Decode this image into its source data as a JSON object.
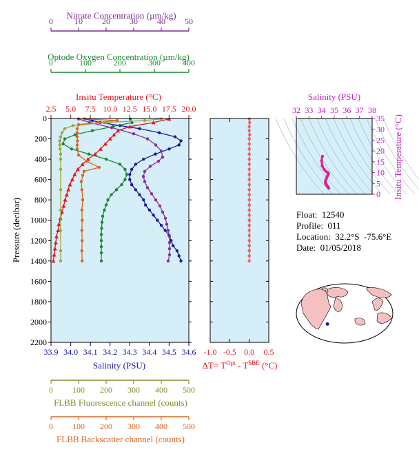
{
  "info": {
    "float": "Float:  12540",
    "profile": "Profile:  011",
    "location": "Location:  32.2°S  -75.6°E",
    "date": "Date:  01/05/2018"
  },
  "axes": {
    "pressure": {
      "title": "Pressure (decibar)",
      "range": [
        0,
        2200
      ],
      "ticks": [
        "0",
        "200",
        "400",
        "600",
        "800",
        "1000",
        "1200",
        "1400",
        "1600",
        "1800",
        "2000",
        "2200"
      ],
      "color": "#000000"
    },
    "nitrate": {
      "title": "Nitrate Concentration (µm/kg)",
      "range": [
        0,
        50
      ],
      "ticks": [
        "0",
        "10",
        "20",
        "30",
        "40",
        "50"
      ],
      "color": "#7b2e8e"
    },
    "oxygen": {
      "title": "Optode Oxygen Concentration (µm/kg)",
      "range": [
        0,
        400
      ],
      "ticks": [
        "0",
        "100",
        "200",
        "300",
        "400"
      ],
      "color": "#1a8a2e"
    },
    "temperature": {
      "title": "Insitu Temperature (°C)",
      "range": [
        2.5,
        20.0
      ],
      "ticks": [
        "2.5",
        "5.0",
        "7.5",
        "10.0",
        "12.5",
        "15.0",
        "17.5",
        "20.0"
      ],
      "color": "#e8151b"
    },
    "salinity": {
      "title": "Salinity (PSU)",
      "range": [
        33.9,
        34.6
      ],
      "ticks": [
        "33.9",
        "34.0",
        "34.1",
        "34.2",
        "34.3",
        "34.4",
        "34.5",
        "34.6"
      ],
      "color": "#1a1aa6"
    },
    "fluorescence": {
      "title": "FLBB Fluorescence channel (counts)",
      "range": [
        0,
        500
      ],
      "ticks": [
        "0",
        "100",
        "200",
        "300",
        "400",
        "500"
      ],
      "color": "#8a8a2e"
    },
    "backscatter": {
      "title": "FLBB Backscatter channel (counts)",
      "range": [
        0,
        500
      ],
      "ticks": [
        "0",
        "100",
        "200",
        "300",
        "400",
        "500"
      ],
      "color": "#d9661f"
    },
    "delta_t": {
      "title_prefix": "ΔT= T",
      "sup1": "Opt",
      "title_mid": " - T",
      "sup2": "SBE",
      "title_suffix": " (°C)",
      "range": [
        -1.0,
        0.5
      ],
      "ticks": [
        "-1.0",
        "-0.5",
        "0.0",
        "0.5"
      ],
      "color": "#e8151b"
    }
  },
  "chart_data": [
    {
      "type": "line",
      "y_label": "Pressure (decibar)",
      "y_range": [
        0,
        2200
      ],
      "y_inverted": true,
      "series": [
        {
          "name": "Salinity",
          "axis": "salinity",
          "color": "#1a1aa6",
          "marker": "circle",
          "points": [
            [
              34.07,
              5
            ],
            [
              34.11,
              20
            ],
            [
              34.15,
              40
            ],
            [
              34.25,
              70
            ],
            [
              34.35,
              100
            ],
            [
              34.45,
              140
            ],
            [
              34.53,
              180
            ],
            [
              34.56,
              220
            ],
            [
              34.55,
              260
            ],
            [
              34.5,
              300
            ],
            [
              34.43,
              350
            ],
            [
              34.37,
              400
            ],
            [
              34.33,
              450
            ],
            [
              34.31,
              500
            ],
            [
              34.3,
              550
            ],
            [
              34.3,
              600
            ],
            [
              34.31,
              650
            ],
            [
              34.33,
              700
            ],
            [
              34.35,
              750
            ],
            [
              34.37,
              800
            ],
            [
              34.38,
              850
            ],
            [
              34.4,
              900
            ],
            [
              34.42,
              950
            ],
            [
              34.44,
              1000
            ],
            [
              34.46,
              1050
            ],
            [
              34.48,
              1100
            ],
            [
              34.5,
              1150
            ],
            [
              34.51,
              1200
            ],
            [
              34.52,
              1250
            ],
            [
              34.54,
              1300
            ],
            [
              34.55,
              1350
            ],
            [
              34.56,
              1400
            ]
          ]
        },
        {
          "name": "Nitrate",
          "axis": "nitrate",
          "color": "#8b2f9e",
          "marker": "circle",
          "points": [
            [
              10,
              5
            ],
            [
              14,
              40
            ],
            [
              22,
              90
            ],
            [
              30,
              150
            ],
            [
              35,
              200
            ],
            [
              38,
              260
            ],
            [
              40,
              320
            ],
            [
              40.5,
              380
            ],
            [
              39,
              420
            ],
            [
              36,
              470
            ],
            [
              34,
              520
            ],
            [
              33.5,
              570
            ],
            [
              34,
              620
            ],
            [
              35,
              680
            ],
            [
              36.5,
              740
            ],
            [
              38,
              800
            ],
            [
              39.5,
              860
            ],
            [
              40.5,
              920
            ],
            [
              41.5,
              980
            ],
            [
              42,
              1040
            ],
            [
              42.5,
              1100
            ],
            [
              43,
              1160
            ],
            [
              43,
              1220
            ],
            [
              43,
              1280
            ],
            [
              43,
              1340
            ],
            [
              42.5,
              1400
            ]
          ]
        },
        {
          "name": "Oxygen",
          "axis": "oxygen",
          "color": "#1a8a2e",
          "marker": "circle",
          "points": [
            [
              230,
              5
            ],
            [
              235,
              40
            ],
            [
              180,
              80
            ],
            [
              120,
              120
            ],
            [
              70,
              160
            ],
            [
              40,
              200
            ],
            [
              35,
              250
            ],
            [
              60,
              300
            ],
            [
              110,
              350
            ],
            [
              160,
              400
            ],
            [
              200,
              450
            ],
            [
              215,
              500
            ],
            [
              220,
              550
            ],
            [
              215,
              600
            ],
            [
              205,
              650
            ],
            [
              190,
              700
            ],
            [
              175,
              750
            ],
            [
              165,
              800
            ],
            [
              160,
              850
            ],
            [
              155,
              900
            ],
            [
              150,
              960
            ],
            [
              148,
              1020
            ],
            [
              147,
              1080
            ],
            [
              146,
              1140
            ],
            [
              146,
              1200
            ],
            [
              146,
              1260
            ],
            [
              146,
              1320
            ],
            [
              146,
              1400
            ]
          ]
        },
        {
          "name": "Temperature",
          "axis": "temperature",
          "color": "#e8151b",
          "marker": "triangle",
          "points": [
            [
              17.5,
              5
            ],
            [
              15.5,
              40
            ],
            [
              12.5,
              80
            ],
            [
              11,
              120
            ],
            [
              10.5,
              160
            ],
            [
              10,
              200
            ],
            [
              9.4,
              250
            ],
            [
              8.8,
              300
            ],
            [
              8.1,
              350
            ],
            [
              7.2,
              400
            ],
            [
              6.5,
              450
            ],
            [
              5.9,
              500
            ],
            [
              5.5,
              550
            ],
            [
              5.2,
              600
            ],
            [
              4.9,
              650
            ],
            [
              4.7,
              700
            ],
            [
              4.5,
              750
            ],
            [
              4.3,
              800
            ],
            [
              4.1,
              860
            ],
            [
              3.9,
              920
            ],
            [
              3.7,
              980
            ],
            [
              3.5,
              1040
            ],
            [
              3.4,
              1100
            ],
            [
              3.2,
              1160
            ],
            [
              3.1,
              1220
            ],
            [
              3.0,
              1280
            ],
            [
              2.9,
              1340
            ],
            [
              2.8,
              1400
            ]
          ]
        },
        {
          "name": "Fluorescence",
          "axis": "fluorescence",
          "color": "#a3a341",
          "marker": "circle",
          "points": [
            [
              400,
              5
            ],
            [
              340,
              20
            ],
            [
              200,
              40
            ],
            [
              80,
              70
            ],
            [
              50,
              100
            ],
            [
              40,
              140
            ],
            [
              35,
              180
            ],
            [
              32,
              220
            ],
            [
              32,
              260
            ],
            [
              33,
              300
            ],
            [
              35,
              350
            ],
            [
              35,
              400
            ],
            [
              35,
              500
            ],
            [
              35,
              700
            ],
            [
              35,
              900
            ],
            [
              35,
              1100
            ],
            [
              35,
              1300
            ],
            [
              35,
              1400
            ]
          ]
        },
        {
          "name": "Backscatter",
          "axis": "backscatter",
          "color": "#d9661f",
          "marker": "circle",
          "points": [
            [
              120,
              5
            ],
            [
              240,
              20
            ],
            [
              100,
              60
            ],
            [
              95,
              100
            ],
            [
              95,
              140
            ],
            [
              95,
              180
            ],
            [
              96,
              220
            ],
            [
              95,
              260
            ],
            [
              95,
              300
            ],
            [
              100,
              360
            ],
            [
              130,
              420
            ],
            [
              175,
              480
            ],
            [
              120,
              520
            ],
            [
              115,
              560
            ],
            [
              110,
              620
            ],
            [
              112,
              700
            ],
            [
              115,
              800
            ],
            [
              112,
              900
            ],
            [
              113,
              1000
            ],
            [
              112,
              1100
            ],
            [
              113,
              1200
            ],
            [
              112,
              1300
            ],
            [
              113,
              1400
            ]
          ]
        }
      ]
    },
    {
      "type": "line",
      "name": "Delta T",
      "x_label": "ΔT= TOpt - TSBE (°C)",
      "x_range": [
        -1.0,
        0.5
      ],
      "y_range": [
        0,
        2200
      ],
      "series": [
        {
          "name": "Delta T",
          "color": "#f25f5f",
          "marker": "circle",
          "points": [
            [
              0.0,
              5
            ],
            [
              0.01,
              40
            ],
            [
              0.0,
              80
            ],
            [
              0.0,
              120
            ],
            [
              0.01,
              160
            ],
            [
              0.0,
              200
            ],
            [
              0.0,
              250
            ],
            [
              0.0,
              300
            ],
            [
              0.0,
              350
            ],
            [
              0.0,
              400
            ],
            [
              0.0,
              450
            ],
            [
              0.0,
              500
            ],
            [
              0.0,
              550
            ],
            [
              0.0,
              600
            ],
            [
              0.0,
              650
            ],
            [
              0.0,
              700
            ],
            [
              0.0,
              750
            ],
            [
              0.0,
              800
            ],
            [
              0.0,
              850
            ],
            [
              0.0,
              900
            ],
            [
              0.0,
              950
            ],
            [
              0.0,
              1000
            ],
            [
              0.0,
              1050
            ],
            [
              0.0,
              1100
            ],
            [
              0.0,
              1150
            ],
            [
              0.0,
              1200
            ],
            [
              0.0,
              1250
            ],
            [
              0.0,
              1300
            ],
            [
              0.0,
              1350
            ],
            [
              0.0,
              1400
            ]
          ]
        }
      ]
    },
    {
      "type": "scatter",
      "name": "T-S diagram",
      "x_label": "Salinity (PSU)",
      "y_label": "Insitu Temperature (°C)",
      "x_range": [
        32,
        38
      ],
      "y_range": [
        0,
        35
      ],
      "x_ticks": [
        "32",
        "33",
        "34",
        "35",
        "36",
        "37",
        "38"
      ],
      "y_ticks": [
        "0",
        "5",
        "10",
        "15",
        "20",
        "25",
        "30",
        "35"
      ],
      "series": [
        {
          "name": "T-S",
          "color": "#e0208a",
          "points": [
            [
              34.07,
              17.5
            ],
            [
              34.0,
              15.5
            ],
            [
              34.05,
              13.0
            ],
            [
              34.2,
              11.5
            ],
            [
              34.35,
              10.5
            ],
            [
              34.5,
              10.0
            ],
            [
              34.55,
              9.4
            ],
            [
              34.5,
              8.8
            ],
            [
              34.43,
              8.1
            ],
            [
              34.37,
              7.2
            ],
            [
              34.33,
              6.5
            ],
            [
              34.31,
              5.9
            ],
            [
              34.3,
              5.5
            ],
            [
              34.31,
              5.2
            ],
            [
              34.33,
              4.9
            ],
            [
              34.35,
              4.7
            ],
            [
              34.38,
              4.4
            ],
            [
              34.42,
              4.0
            ],
            [
              34.46,
              3.7
            ],
            [
              34.5,
              3.4
            ],
            [
              34.53,
              3.1
            ],
            [
              34.56,
              2.8
            ]
          ]
        }
      ]
    }
  ],
  "ts": {
    "xlabel": "Salinity (PSU)",
    "ylabel": "Insitu Temperature (°C)"
  },
  "map": {
    "float_lon": -75.6,
    "float_lat": -32.2,
    "land_color": "#f4c0c0",
    "ocean_color": "#ffffff",
    "marker_color": "#1a1aa6"
  }
}
